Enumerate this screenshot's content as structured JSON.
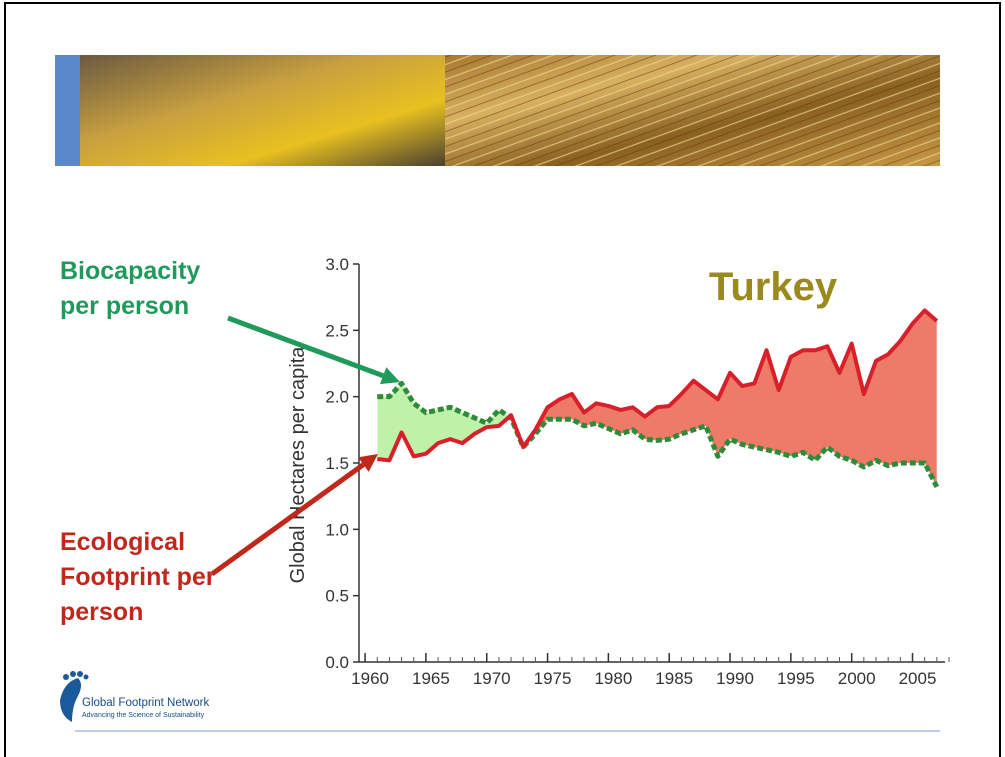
{
  "chart_data": {
    "type": "area-gap",
    "title": "Turkey",
    "y_label": "Global Hectares per capita",
    "x": [
      1961,
      1962,
      1963,
      1964,
      1965,
      1966,
      1967,
      1968,
      1969,
      1970,
      1971,
      1972,
      1973,
      1974,
      1975,
      1976,
      1977,
      1978,
      1979,
      1980,
      1981,
      1982,
      1983,
      1984,
      1985,
      1986,
      1987,
      1988,
      1989,
      1990,
      1991,
      1992,
      1993,
      1994,
      1995,
      1996,
      1997,
      1998,
      1999,
      2000,
      2001,
      2002,
      2003,
      2004,
      2005,
      2006,
      2007
    ],
    "series": [
      {
        "name": "Biocapacity per person",
        "color": "#2e8b3a",
        "fill": "#b8f0a0",
        "text_color": "#1e9a5a",
        "values": [
          2.0,
          2.0,
          2.1,
          1.95,
          1.88,
          1.9,
          1.92,
          1.88,
          1.84,
          1.8,
          1.9,
          1.84,
          1.62,
          1.72,
          1.83,
          1.83,
          1.83,
          1.78,
          1.8,
          1.76,
          1.72,
          1.75,
          1.68,
          1.67,
          1.68,
          1.72,
          1.75,
          1.78,
          1.55,
          1.68,
          1.64,
          1.62,
          1.6,
          1.58,
          1.55,
          1.58,
          1.52,
          1.62,
          1.55,
          1.52,
          1.47,
          1.52,
          1.48,
          1.5,
          1.5,
          1.5,
          1.32
        ]
      },
      {
        "name": "Ecological Footprint per person",
        "color": "#d8202a",
        "fill": "#ee7a68",
        "text_color": "#c0281c",
        "values": [
          1.53,
          1.52,
          1.73,
          1.55,
          1.57,
          1.65,
          1.68,
          1.65,
          1.72,
          1.77,
          1.78,
          1.86,
          1.62,
          1.75,
          1.92,
          1.98,
          2.02,
          1.88,
          1.95,
          1.93,
          1.9,
          1.92,
          1.85,
          1.92,
          1.93,
          2.02,
          2.12,
          2.05,
          1.98,
          2.18,
          2.08,
          2.1,
          2.35,
          2.05,
          2.3,
          2.35,
          2.35,
          2.38,
          2.18,
          2.4,
          2.02,
          2.27,
          2.32,
          2.42,
          2.55,
          2.65,
          2.57
        ]
      }
    ],
    "xlim": [
      1959.5,
      2008
    ],
    "xticks": [
      1960,
      1965,
      1970,
      1975,
      1980,
      1985,
      1990,
      1995,
      2000,
      2005
    ],
    "ylim": [
      0,
      3
    ],
    "yticks": [
      {
        "value": 0,
        "label": "0.0"
      },
      {
        "value": 0.5,
        "label": "0.5"
      },
      {
        "value": 1,
        "label": "1.0"
      },
      {
        "value": 1.5,
        "label": "1.5"
      },
      {
        "value": 2,
        "label": "2.0"
      },
      {
        "value": 2.5,
        "label": "2.5"
      },
      {
        "value": 3,
        "label": "3.0"
      }
    ],
    "title_color": "#9a8a1e"
  },
  "logo": {
    "name": "Global Footprint Network",
    "tagline": "Advancing the Science of Sustainability"
  }
}
